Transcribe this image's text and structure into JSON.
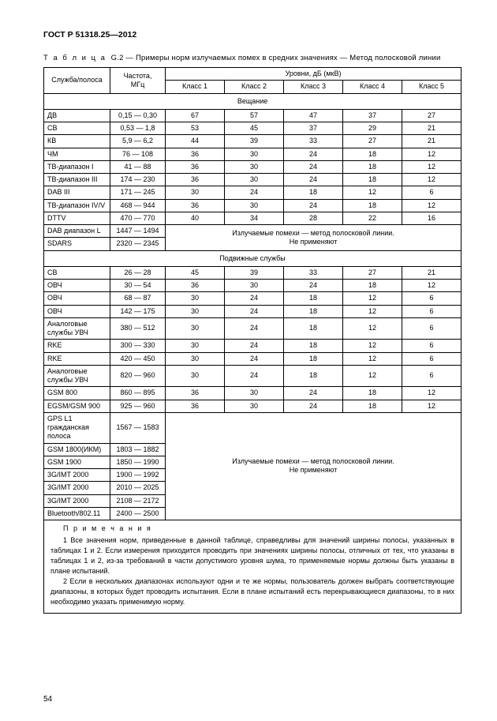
{
  "doc_header": "ГОСТ Р 51318.25—2012",
  "caption_prefix": "Т а б л и ц а",
  "caption_num": "G.2",
  "caption_text": "— Примеры норм излучаемых помех в средних значениях — Метод полосковой линии",
  "headers": {
    "service": "Служба/полоса",
    "freq": "Частота,\nМГц",
    "levels": "Уровни, дБ (мкВ)",
    "classes": [
      "Класс 1",
      "Класс 2",
      "Класс 3",
      "Класс 4",
      "Класс 5"
    ]
  },
  "section1_title": "Вещание",
  "section1_rows": [
    {
      "svc": "ДВ",
      "freq": "0,15 — 0,30",
      "v": [
        "67",
        "57",
        "47",
        "37",
        "27"
      ]
    },
    {
      "svc": "СВ",
      "freq": "0,53 — 1,8",
      "v": [
        "53",
        "45",
        "37",
        "29",
        "21"
      ]
    },
    {
      "svc": "КВ",
      "freq": "5,9 — 6,2",
      "v": [
        "44",
        "39",
        "33",
        "27",
        "21"
      ]
    },
    {
      "svc": "ЧМ",
      "freq": "76 — 108",
      "v": [
        "36",
        "30",
        "24",
        "18",
        "12"
      ]
    },
    {
      "svc": "ТВ-диапазон I",
      "freq": "41 — 88",
      "v": [
        "36",
        "30",
        "24",
        "18",
        "12"
      ]
    },
    {
      "svc": "ТВ-диапазон III",
      "freq": "174 — 230",
      "v": [
        "36",
        "30",
        "24",
        "18",
        "12"
      ]
    },
    {
      "svc": "DAB III",
      "freq": "171 — 245",
      "v": [
        "30",
        "24",
        "18",
        "12",
        "6"
      ]
    },
    {
      "svc": "ТВ-диапазон IV/V",
      "freq": "468 — 944",
      "v": [
        "36",
        "30",
        "24",
        "18",
        "12"
      ]
    },
    {
      "svc": "DTTV",
      "freq": "470 — 770",
      "v": [
        "40",
        "34",
        "28",
        "22",
        "16"
      ]
    }
  ],
  "section1_note_rows": [
    {
      "svc": "DAB диапазон L",
      "freq": "1447 — 1494"
    },
    {
      "svc": "SDARS",
      "freq": "2320 — 2345"
    }
  ],
  "section1_note_text": "Излучаемые помехи — метод полосковой линии.\nНе применяют",
  "section2_title": "Подвижные службы",
  "section2_rows": [
    {
      "svc": "CB",
      "freq": "26 — 28",
      "v": [
        "45",
        "39",
        "33",
        "27",
        "21"
      ]
    },
    {
      "svc": "ОВЧ",
      "freq": "30 — 54",
      "v": [
        "36",
        "30",
        "24",
        "18",
        "12"
      ]
    },
    {
      "svc": "ОВЧ",
      "freq": "68 — 87",
      "v": [
        "30",
        "24",
        "18",
        "12",
        "6"
      ]
    },
    {
      "svc": "ОВЧ",
      "freq": "142 — 175",
      "v": [
        "30",
        "24",
        "18",
        "12",
        "6"
      ]
    },
    {
      "svc": "Аналоговые службы УВЧ",
      "freq": "380 — 512",
      "v": [
        "30",
        "24",
        "18",
        "12",
        "6"
      ]
    },
    {
      "svc": "RKE",
      "freq": "300 — 330",
      "v": [
        "30",
        "24",
        "18",
        "12",
        "6"
      ]
    },
    {
      "svc": "RKE",
      "freq": "420 — 450",
      "v": [
        "30",
        "24",
        "18",
        "12",
        "6"
      ]
    },
    {
      "svc": "Аналоговые службы УВЧ",
      "freq": "820 — 960",
      "v": [
        "30",
        "24",
        "18",
        "12",
        "6"
      ]
    },
    {
      "svc": "GSM 800",
      "freq": "860 — 895",
      "v": [
        "36",
        "30",
        "24",
        "18",
        "12"
      ]
    },
    {
      "svc": "EGSM/GSM 900",
      "freq": "925 — 960",
      "v": [
        "36",
        "30",
        "24",
        "18",
        "12"
      ]
    }
  ],
  "section2_note_rows": [
    {
      "svc": "GPS L1 гражданская полоса",
      "freq": "1567 — 1583"
    },
    {
      "svc": "GSM 1800(ИКМ)",
      "freq": "1803 — 1882"
    },
    {
      "svc": "GSM 1900",
      "freq": "1850 — 1990"
    },
    {
      "svc": "3G/IMT 2000",
      "freq": "1900 — 1992"
    },
    {
      "svc": "3G/IMT 2000",
      "freq": "2010 — 2025"
    },
    {
      "svc": "3G/IMT 2000",
      "freq": "2108 — 2172"
    },
    {
      "svc": "Bluetooth/802.11",
      "freq": "2400 — 2500"
    }
  ],
  "section2_note_text": "Излучаемые помехи — метод полосковой линии.\nНе применяют",
  "notes_title": "П р и м е ч а н и я",
  "note1": "1 Все значения норм, приведенные в данной таблице, справедливы для значений ширины полосы, указанных в таблицах 1 и 2. Если измерения приходится проводить при значениях ширины полосы, отличных от тех, что указаны в таблицах 1 и 2, из-за требований в части допустимого уровня шума, то применяемые нормы должны быть указаны в плане испытаний.",
  "note2": "2 Если в нескольких диапазонах используют одни и те же нормы,  пользователь должен выбрать соответствующие диапазоны, в которых будет проводить испытания. Если в плане испытаний есть перекрывающиеся диапазоны, то в них необходимо указать применимую норму.",
  "page_number": "54"
}
